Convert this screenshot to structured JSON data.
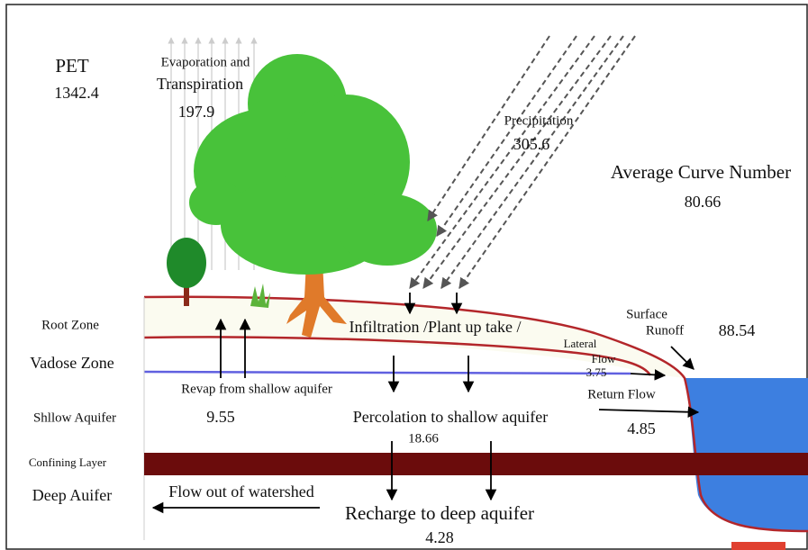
{
  "pet": {
    "label": "PET",
    "value": 1342.4
  },
  "evapotranspiration": {
    "label_lines": [
      "Evaporation and",
      "Transpiration"
    ],
    "value": 197.9
  },
  "precipitation": {
    "label": "Precipitation",
    "value": 305.6
  },
  "curve_number": {
    "label": "Average Curve Number",
    "value": 80.66
  },
  "layers": [
    "Root Zone",
    "Vadose Zone",
    "Shllow Aquifer",
    "Confining Layer",
    "Deep Auifer"
  ],
  "infiltration": {
    "label": "Infiltration /Plant up take /"
  },
  "surface_runoff": {
    "label_lines": [
      "Surface",
      "Runoff"
    ],
    "value": 88.54
  },
  "lateral_flow": {
    "label_lines": [
      "Lateral",
      "Flow"
    ],
    "value": 3.75
  },
  "revap": {
    "label": "Revap from shallow aquifer",
    "value": 9.55
  },
  "return_flow": {
    "label": "Return Flow",
    "value": 4.85
  },
  "percolation": {
    "label": "Percolation to shallow aquifer",
    "value": 18.66
  },
  "flow_out": {
    "label": "Flow out of watershed"
  },
  "recharge": {
    "label": "Recharge to deep aquifer",
    "value": 4.28
  }
}
